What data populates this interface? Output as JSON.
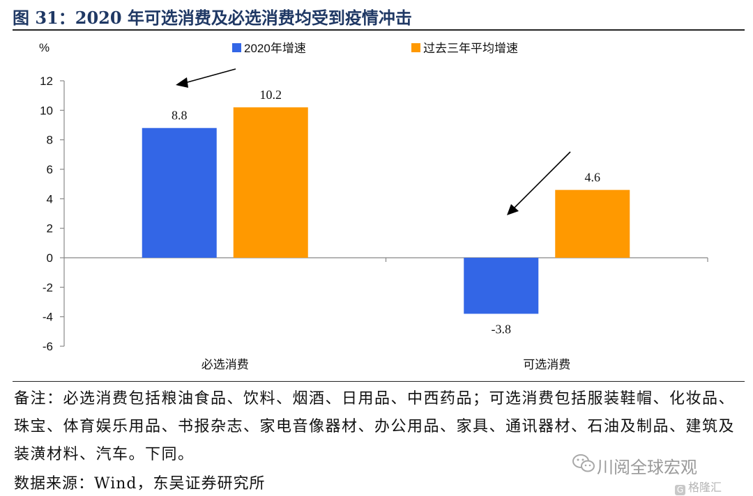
{
  "figure": {
    "title": "图 31：2020 年可选消费及必选消费均受到疫情冲击"
  },
  "chart_data": {
    "type": "bar",
    "categories": [
      "必选消费",
      "可选消费"
    ],
    "series": [
      {
        "name": "2020年增速",
        "values": [
          8.8,
          -3.8
        ],
        "color": "#3366e6"
      },
      {
        "name": "过去三年平均增速",
        "values": [
          10.2,
          4.6
        ],
        "color": "#ff9900"
      }
    ],
    "ylabel": "%",
    "ylim": [
      -6,
      12
    ],
    "yticks": [
      12,
      10,
      8,
      6,
      4,
      2,
      0,
      -2,
      -4,
      -6
    ],
    "data_labels": [
      [
        "8.8",
        "-3.8"
      ],
      [
        "10.2",
        "4.6"
      ]
    ],
    "legend_position": "top",
    "grid": false,
    "annotations": [
      "arrow pointing to 必选消费 2020年增速 bar",
      "arrow pointing to 可选消费 2020年增速 bar"
    ]
  },
  "footer": {
    "note": "备注：必选消费包括粮油食品、饮料、烟酒、日用品、中西药品；可选消费包括服装鞋帽、化妆品、珠宝、体育娱乐用品、书报杂志、家电音像器材、办公用品、家具、通讯器材、石油及制品、建筑及装潢材料、汽车。下同。",
    "source": "数据来源：Wind，东吴证券研究所"
  },
  "watermark": {
    "text": "川阅全球宏观",
    "logo_text": "格隆汇",
    "icon": "wechat-icon",
    "logo_icon": "gelonghui-logo-icon"
  }
}
